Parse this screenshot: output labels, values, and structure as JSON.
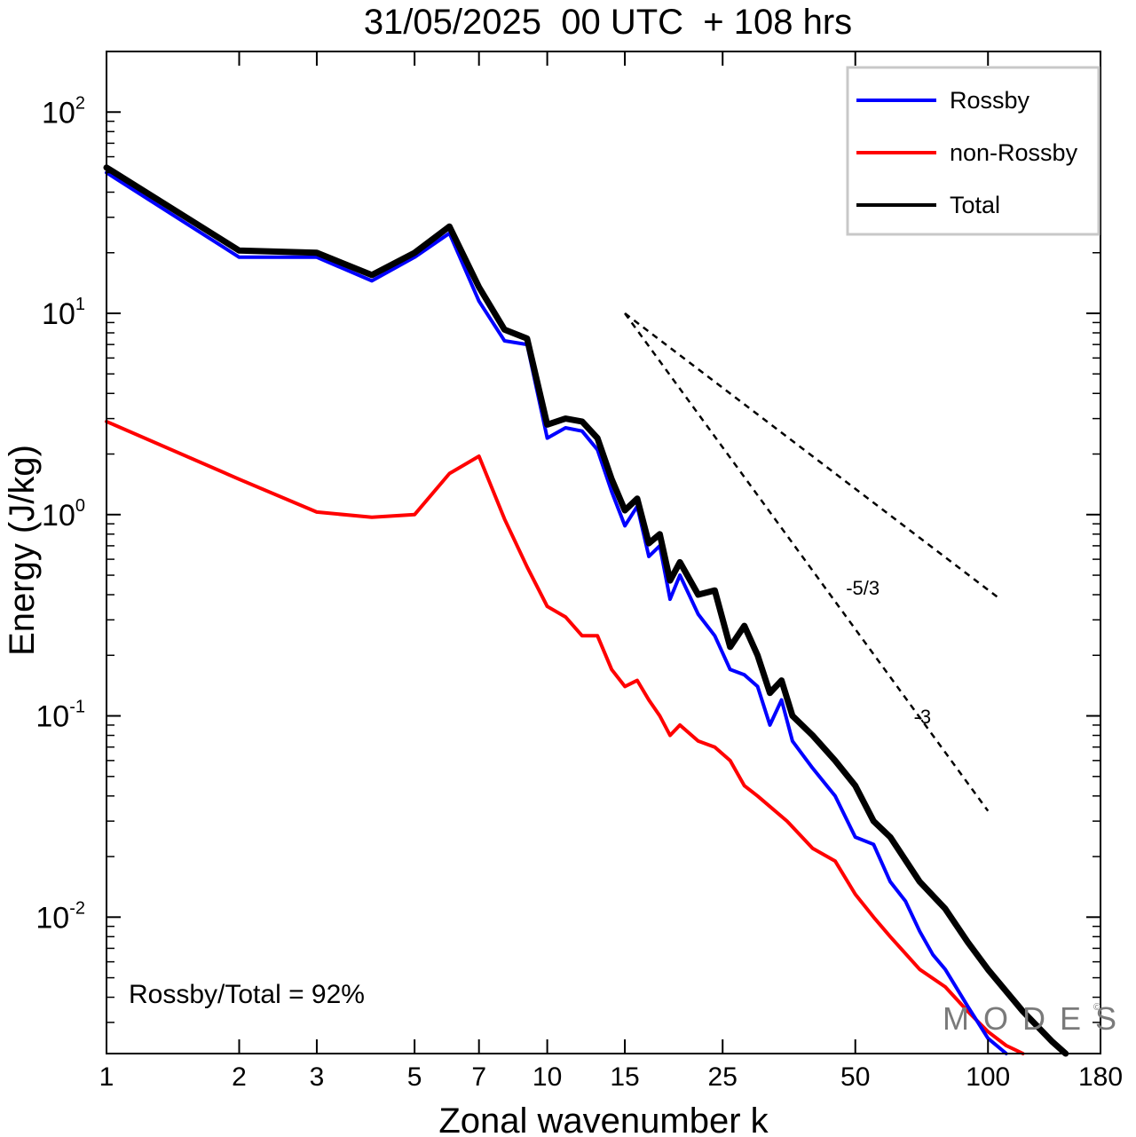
{
  "chart_data": {
    "type": "line",
    "title": "31/05/2025  00 UTC  + 108 hrs",
    "xlabel": "Zonal wavenumber k",
    "ylabel": "Energy (J/kg)",
    "xscale": "log",
    "yscale": "log",
    "xlim": [
      1,
      180
    ],
    "ylim": [
      0.0021,
      200
    ],
    "xticks": [
      1,
      2,
      3,
      5,
      7,
      10,
      15,
      25,
      50,
      100,
      180
    ],
    "xtick_labels": [
      "1",
      "2",
      "3",
      "5",
      "7",
      "10",
      "15",
      "25",
      "50",
      "100",
      "180"
    ],
    "yticks": [
      {
        "value": 100,
        "base": "10",
        "exp": "2"
      },
      {
        "value": 10,
        "base": "10",
        "exp": "1"
      },
      {
        "value": 1,
        "base": "10",
        "exp": "0"
      },
      {
        "value": 0.1,
        "base": "10",
        "exp": "-1"
      },
      {
        "value": 0.01,
        "base": "10",
        "exp": "-2"
      }
    ],
    "legend_position": "top-right",
    "annotation": "Rossby/Total = 92%",
    "watermark": "MODES",
    "series": [
      {
        "name": "Rossby",
        "color": "#0000ff",
        "x": [
          1,
          2,
          3,
          4,
          5,
          6,
          7,
          8,
          9,
          10,
          11,
          12,
          13,
          14,
          15,
          16,
          17,
          18,
          19,
          20,
          22,
          24,
          26,
          28,
          30,
          32,
          34,
          36,
          40,
          45,
          50,
          55,
          60,
          65,
          70,
          75,
          80,
          90,
          100,
          110
        ],
        "values": [
          50,
          19,
          19,
          14.5,
          19,
          25,
          11.5,
          7.3,
          7.0,
          2.4,
          2.7,
          2.6,
          2.1,
          1.3,
          0.88,
          1.1,
          0.62,
          0.7,
          0.38,
          0.5,
          0.32,
          0.25,
          0.17,
          0.16,
          0.14,
          0.09,
          0.12,
          0.075,
          0.055,
          0.04,
          0.025,
          0.023,
          0.015,
          0.012,
          0.0085,
          0.0065,
          0.0055,
          0.0036,
          0.0025,
          0.0021
        ]
      },
      {
        "name": "non-Rossby",
        "color": "#ff0000",
        "x": [
          1,
          2,
          3,
          4,
          5,
          6,
          7,
          8,
          9,
          10,
          11,
          12,
          13,
          14,
          15,
          16,
          17,
          18,
          19,
          20,
          22,
          24,
          26,
          28,
          30,
          35,
          40,
          45,
          50,
          55,
          60,
          70,
          80,
          90,
          100,
          110,
          120
        ],
        "values": [
          2.9,
          1.5,
          1.03,
          0.97,
          1.0,
          1.6,
          1.95,
          0.95,
          0.55,
          0.35,
          0.31,
          0.25,
          0.25,
          0.17,
          0.14,
          0.15,
          0.12,
          0.1,
          0.08,
          0.09,
          0.075,
          0.07,
          0.06,
          0.045,
          0.04,
          0.03,
          0.022,
          0.019,
          0.013,
          0.01,
          0.008,
          0.0055,
          0.0045,
          0.0034,
          0.0027,
          0.0023,
          0.0021
        ]
      },
      {
        "name": "Total",
        "color": "#000000",
        "x": [
          1,
          2,
          3,
          4,
          5,
          6,
          7,
          8,
          9,
          10,
          11,
          12,
          13,
          14,
          15,
          16,
          17,
          18,
          19,
          20,
          22,
          24,
          26,
          28,
          30,
          32,
          34,
          36,
          40,
          45,
          50,
          55,
          60,
          70,
          80,
          90,
          100,
          120,
          140,
          150
        ],
        "values": [
          53,
          20.5,
          20,
          15.5,
          20,
          27,
          13.5,
          8.3,
          7.5,
          2.8,
          3.0,
          2.9,
          2.4,
          1.5,
          1.05,
          1.2,
          0.72,
          0.8,
          0.47,
          0.58,
          0.4,
          0.42,
          0.22,
          0.28,
          0.2,
          0.13,
          0.15,
          0.1,
          0.08,
          0.06,
          0.045,
          0.03,
          0.025,
          0.015,
          0.011,
          0.0075,
          0.0055,
          0.0034,
          0.0024,
          0.0021
        ]
      }
    ],
    "reference_lines": [
      {
        "label": "-5/3",
        "x": [
          15,
          105
        ],
        "y": [
          10,
          0.39
        ],
        "label_x": 52,
        "label_y": 0.4
      },
      {
        "label": "-3",
        "x": [
          15,
          100
        ],
        "y": [
          10,
          0.0337
        ],
        "label_x": 71,
        "label_y": 0.092
      }
    ]
  }
}
